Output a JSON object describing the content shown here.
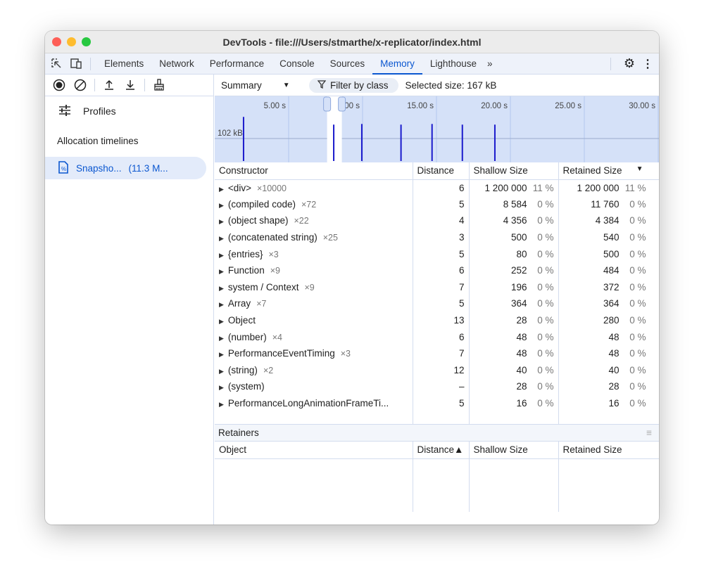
{
  "window": {
    "title": "DevTools - file:///Users/stmarthe/x-replicator/index.html"
  },
  "tabs": [
    {
      "label": "Elements"
    },
    {
      "label": "Network"
    },
    {
      "label": "Performance"
    },
    {
      "label": "Console"
    },
    {
      "label": "Sources"
    },
    {
      "label": "Memory",
      "active": true
    },
    {
      "label": "Lighthouse"
    }
  ],
  "accent": "#0b57d0",
  "sidebar": {
    "profiles_label": "Profiles",
    "section": "Allocation timelines",
    "snapshot_name": "Snapsho...",
    "snapshot_size": "(11.3 M..."
  },
  "toolbar": {
    "view": "Summary",
    "filter_placeholder": "Filter by class",
    "selected_size": "Selected size: 167 kB"
  },
  "overview": {
    "ticks": [
      "5.00 s",
      "10.00 s",
      "15.00 s",
      "20.00 s",
      "25.00 s",
      "30.00 s"
    ],
    "scale_label": "102 kB",
    "bars": [
      {
        "t": 1.95,
        "kb": 200
      },
      {
        "t": 8.05,
        "kb": 165
      },
      {
        "t": 9.95,
        "kb": 168
      },
      {
        "t": 12.6,
        "kb": 165
      },
      {
        "t": 14.7,
        "kb": 168
      },
      {
        "t": 16.75,
        "kb": 165
      },
      {
        "t": 18.95,
        "kb": 165
      }
    ],
    "selection": [
      7.6,
      8.6
    ]
  },
  "table": {
    "headers": [
      "Constructor",
      "Distance",
      "Shallow Size",
      "Retained Size"
    ],
    "rows": [
      [
        "<div>",
        "×10000",
        "6",
        "1 200 000",
        "11 %",
        "1 200 000",
        "11 %"
      ],
      [
        "(compiled code)",
        "×72",
        "5",
        "8 584",
        "0 %",
        "11 760",
        "0 %"
      ],
      [
        "(object shape)",
        "×22",
        "4",
        "4 356",
        "0 %",
        "4 384",
        "0 %"
      ],
      [
        "(concatenated string)",
        "×25",
        "3",
        "500",
        "0 %",
        "540",
        "0 %"
      ],
      [
        "{entries}",
        "×3",
        "5",
        "80",
        "0 %",
        "500",
        "0 %"
      ],
      [
        "Function",
        "×9",
        "6",
        "252",
        "0 %",
        "484",
        "0 %"
      ],
      [
        "system / Context",
        "×9",
        "7",
        "196",
        "0 %",
        "372",
        "0 %"
      ],
      [
        "Array",
        "×7",
        "5",
        "364",
        "0 %",
        "364",
        "0 %"
      ],
      [
        "Object",
        "",
        "13",
        "28",
        "0 %",
        "280",
        "0 %"
      ],
      [
        "(number)",
        "×4",
        "6",
        "48",
        "0 %",
        "48",
        "0 %"
      ],
      [
        "PerformanceEventTiming",
        "×3",
        "7",
        "48",
        "0 %",
        "48",
        "0 %"
      ],
      [
        "(string)",
        "×2",
        "12",
        "40",
        "0 %",
        "40",
        "0 %"
      ],
      [
        "(system)",
        "",
        "–",
        "28",
        "0 %",
        "28",
        "0 %"
      ],
      [
        "PerformanceLongAnimationFrameTi...",
        "",
        "5",
        "16",
        "0 %",
        "16",
        "0 %"
      ]
    ]
  },
  "retainers": {
    "title": "Retainers",
    "headers": [
      "Object",
      "Distance▲",
      "Shallow Size",
      "Retained Size"
    ]
  }
}
